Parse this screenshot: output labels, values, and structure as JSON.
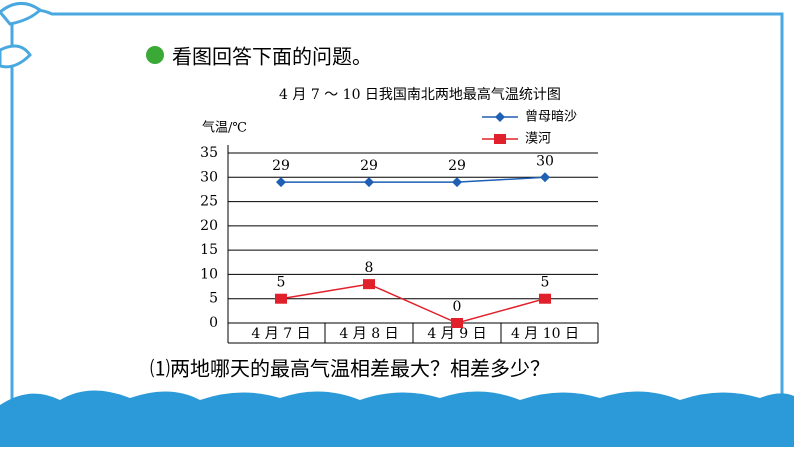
{
  "heading": "看图回答下面的问题。",
  "question": "⑴两地哪天的最高气温相差最大？相差多少？",
  "chart_data": {
    "type": "line",
    "title": "4 月 7 ～ 10 日我国南北两地最高气温统计图",
    "y_label": "气温/℃",
    "categories": [
      "4 月 7 日",
      "4 月 8 日",
      "4 月 9 日",
      "4 月 10 日"
    ],
    "series": [
      {
        "name": "曾母暗沙",
        "color": "#1f5fb4",
        "marker": "diamond",
        "values": [
          29,
          29,
          29,
          30
        ]
      },
      {
        "name": "漠河",
        "color": "#e0202a",
        "marker": "square",
        "values": [
          5,
          8,
          0,
          5
        ]
      }
    ],
    "ylim": [
      0,
      35
    ],
    "yticks": [
      0,
      5,
      10,
      15,
      20,
      25,
      30,
      35
    ],
    "grid": true,
    "legend": "upper right"
  }
}
